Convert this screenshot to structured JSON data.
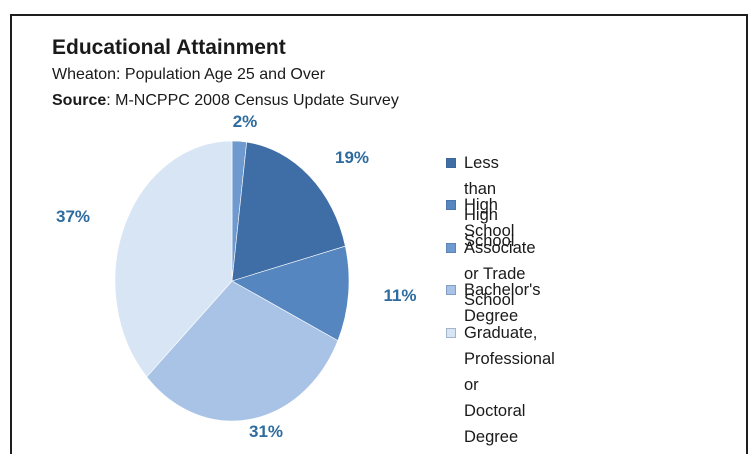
{
  "chart_data": {
    "type": "pie",
    "title": "Educational Attainment",
    "subtitle": "Wheaton: Population Age 25 and Over",
    "source_label": "Source",
    "source_text": ": M-NCPPC 2008 Census Update Survey",
    "legend_position": "right",
    "slices": [
      {
        "label": "Less than High School",
        "value": 19,
        "value_label": "19%",
        "color": "#3f6ea6"
      },
      {
        "label": "High School",
        "value": 11,
        "value_label": "11%",
        "color": "#5586bf"
      },
      {
        "label": "Associate or Trade School",
        "value": 2,
        "value_label": "2%",
        "color": "#6f9ad0"
      },
      {
        "label": "Bachelor's Degree",
        "value": 31,
        "value_label": "31%",
        "color": "#a9c3e6"
      },
      {
        "label": "Graduate, Professional or Doctoral Degree",
        "value": 37,
        "value_label": "37%",
        "color": "#d8e5f5"
      }
    ],
    "slice_order_clockwise_from_top": [
      2,
      0,
      1,
      3,
      4
    ]
  }
}
